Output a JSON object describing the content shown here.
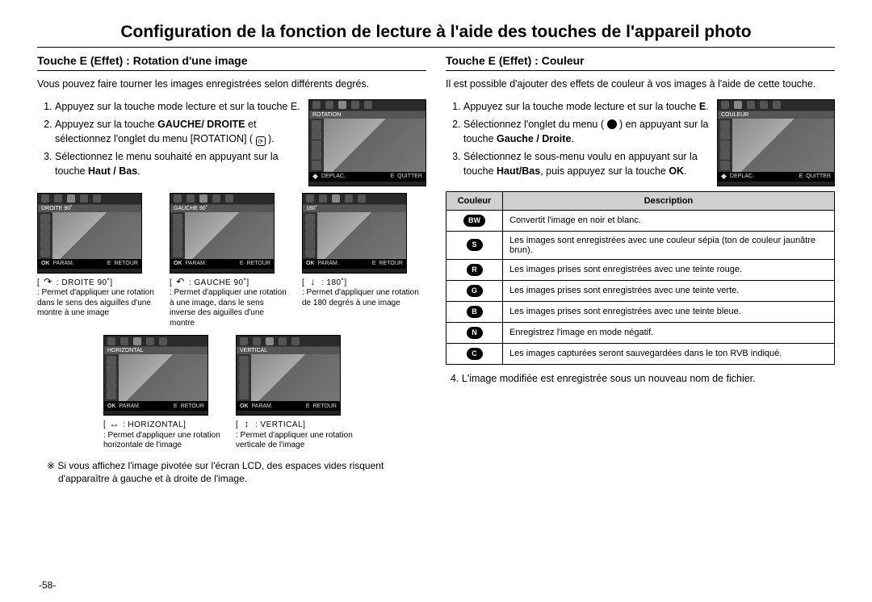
{
  "title": "Configuration de la fonction de lecture à l'aide des touches de l'appareil photo",
  "pageNumber": "-58-",
  "left": {
    "heading": "Touche E (Effet)  :  Rotation d'une image",
    "intro": "Vous pouvez faire tourner les images enregistrées selon différents degrés.",
    "steps": [
      {
        "pre": "Appuyez sur la touche mode lecture et sur la touche E."
      },
      {
        "pre": "Appuyez sur la touche ",
        "bold": "GAUCHE/ DROITE",
        "post": " et sélectionnez l'onglet du menu [ROTATION] ( "
      },
      {
        "pre": "Sélectionnez le menu souhaité en appuyant sur la touche ",
        "bold": "Haut / Bas",
        "post": "."
      }
    ],
    "step2_tail": " ).",
    "lcd_main": {
      "header": "ROTATION",
      "footer_left": "DEPLAC.",
      "footer_right": "QUITTER"
    },
    "thumbs1": [
      {
        "header": "DROITE  90˚",
        "footer_l": "PARAM.",
        "footer_r": "RETOUR",
        "arrow": "↷",
        "label": "DROITE  90˚]",
        "desc": ": Permet d'appliquer une rotation dans le sens des aiguilles d'une montre à une image"
      },
      {
        "header": "GAUCHE  90˚",
        "footer_l": "PARAM.",
        "footer_r": "RETOUR",
        "arrow": "↶",
        "label": "GAUCHE  90˚]",
        "desc": ": Permet d'appliquer une rotation à une image, dans le sens inverse des aiguilles d'une montre"
      },
      {
        "header": "180˚",
        "footer_l": "PARAM.",
        "footer_r": "RETOUR",
        "arrow": "↓",
        "label": "180˚]",
        "desc": ": Permet d'appliquer une rotation de 180 degrés à une image"
      }
    ],
    "thumbs2": [
      {
        "header": "HORIZONTAL",
        "footer_l": "PARAM.",
        "footer_r": "RETOUR",
        "arrow": "↔",
        "label": "HORIZONTAL]",
        "desc": ": Permet d'appliquer une rotation horizontale de l'image"
      },
      {
        "header": "VERTICAL",
        "footer_l": "PARAM.",
        "footer_r": "RETOUR",
        "arrow": "↕",
        "label": "VERTICAL]",
        "desc": ": Permet d'appliquer une rotation verticale de l'image"
      }
    ],
    "note": "※  Si vous affichez l'image pivotée sur l'écran LCD, des espaces vides risquent d'apparaître à gauche et à droite de l'image."
  },
  "right": {
    "heading": "Touche E (Effet)  :  Couleur",
    "intro": "Il est possible d'ajouter des effets de couleur à vos images à l'aide de cette touche.",
    "steps": [
      {
        "pre": "Appuyez sur la touche mode lecture et sur la touche ",
        "bold": "E",
        "post": "."
      },
      {
        "pre": "Sélectionnez l'onglet du menu ( ",
        "mid_icon": true,
        "post2": " ) en appuyant sur la touche ",
        "bold": "Gauche / Droite",
        "post": "."
      },
      {
        "pre": "Sélectionnez le sous-menu voulu en appuyant sur la touche ",
        "bold": "Haut/Bas",
        "post": ", puis appuyez sur la touche ",
        "bold2": "OK",
        "post3": "."
      }
    ],
    "lcd_main": {
      "header": "COULEUR",
      "footer_left": "DEPLAC.",
      "footer_right": "QUITTER"
    },
    "table": {
      "headers": [
        "Couleur",
        "Description"
      ],
      "rows": [
        {
          "icon": "BW",
          "desc": "Convertit l'image en noir et blanc."
        },
        {
          "icon": "S",
          "desc": "Les images sont enregistrées avec une couleur sépia (ton de couleur jaunâtre brun)."
        },
        {
          "icon": "R",
          "desc": "Les images prises sont enregistrées avec une teinte rouge."
        },
        {
          "icon": "G",
          "desc": "Les images prises sont enregistrées avec une teinte verte."
        },
        {
          "icon": "B",
          "desc": "Les images prises sont enregistrées avec une teinte bleue."
        },
        {
          "icon": "N",
          "desc": "Enregistrez l'image en mode négatif."
        },
        {
          "icon": "C",
          "desc": "Les images capturées seront sauvegardées dans le ton RVB indiqué."
        }
      ]
    },
    "after": "4.  L'image modifiée est enregistrée sous un nouveau nom de fichier."
  }
}
